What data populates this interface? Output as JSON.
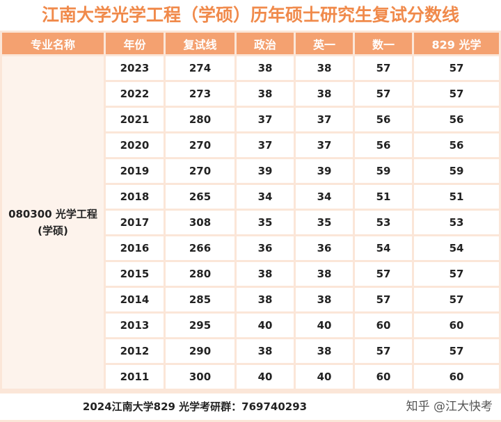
{
  "title": "江南大学光学工程（学硕）历年硕士研究生复试分数线",
  "table": {
    "header": [
      "专业名称",
      "年份",
      "复试线",
      "政治",
      "英一",
      "数一",
      "829 光学"
    ],
    "major": [
      "080300 光学工程",
      "(学硕)"
    ],
    "rows": [
      [
        2023,
        274,
        38,
        38,
        57,
        57
      ],
      [
        2022,
        273,
        38,
        38,
        57,
        57
      ],
      [
        2021,
        280,
        37,
        37,
        56,
        56
      ],
      [
        2020,
        270,
        37,
        37,
        56,
        56
      ],
      [
        2019,
        270,
        39,
        39,
        59,
        59
      ],
      [
        2018,
        265,
        34,
        34,
        51,
        51
      ],
      [
        2017,
        308,
        35,
        35,
        53,
        53
      ],
      [
        2016,
        266,
        36,
        36,
        54,
        54
      ],
      [
        2015,
        280,
        38,
        38,
        57,
        57
      ],
      [
        2014,
        285,
        38,
        38,
        57,
        57
      ],
      [
        2013,
        295,
        40,
        40,
        60,
        60
      ],
      [
        2012,
        290,
        38,
        38,
        57,
        57
      ],
      [
        2011,
        300,
        40,
        40,
        60,
        60
      ]
    ]
  },
  "footer": {
    "note": "2024江南大学829 光学考研群：769740293",
    "credit": "知乎 @江大快考"
  }
}
